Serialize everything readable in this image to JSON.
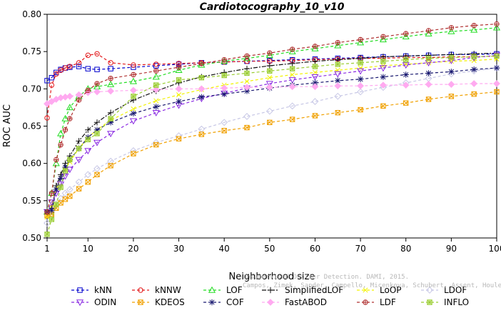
{
  "chart_data": {
    "type": "line",
    "title": "Cardiotocography_10_v10",
    "xlabel": "Neighborhood size",
    "ylabel": "ROC AUC",
    "xlim": [
      1,
      100
    ],
    "ylim": [
      0.5,
      0.8
    ],
    "xticks": [
      "1",
      "10",
      "20",
      "30",
      "40",
      "50",
      "60",
      "70",
      "80",
      "90",
      "100"
    ],
    "yticks": [
      "0.50",
      "0.55",
      "0.60",
      "0.65",
      "0.70",
      "0.75",
      "0.80"
    ],
    "grid": false,
    "legend_position": "bottom",
    "x": [
      1,
      2,
      3,
      4,
      5,
      6,
      8,
      10,
      12,
      15,
      20,
      25,
      30,
      35,
      40,
      45,
      50,
      55,
      60,
      65,
      70,
      75,
      80,
      85,
      90,
      95,
      100
    ],
    "series": [
      {
        "name": "kNN",
        "color": "#0000cd",
        "marker": "square",
        "dash": "4,3",
        "values": [
          0.711,
          0.715,
          0.722,
          0.726,
          0.728,
          0.729,
          0.73,
          0.727,
          0.726,
          0.727,
          0.729,
          0.731,
          0.733,
          0.735,
          0.736,
          0.737,
          0.738,
          0.739,
          0.74,
          0.741,
          0.742,
          0.743,
          0.744,
          0.745,
          0.746,
          0.746,
          0.747
        ]
      },
      {
        "name": "kNNW",
        "color": "#e31a1c",
        "marker": "circle",
        "dash": "4,3",
        "values": [
          0.661,
          0.705,
          0.72,
          0.725,
          0.728,
          0.73,
          0.735,
          0.745,
          0.747,
          0.735,
          0.732,
          0.733,
          0.734,
          0.735,
          0.736,
          0.737,
          0.737,
          0.738,
          0.739,
          0.74,
          0.741,
          0.741,
          0.742,
          0.742,
          0.743,
          0.743,
          0.744
        ]
      },
      {
        "name": "LOF",
        "color": "#22dd22",
        "marker": "triangle",
        "dash": "4,3",
        "values": [
          0.535,
          0.56,
          0.6,
          0.64,
          0.66,
          0.675,
          0.69,
          0.7,
          0.703,
          0.706,
          0.71,
          0.716,
          0.725,
          0.732,
          0.737,
          0.741,
          0.745,
          0.75,
          0.754,
          0.758,
          0.762,
          0.766,
          0.77,
          0.774,
          0.777,
          0.779,
          0.782
        ]
      },
      {
        "name": "SimplifiedLOF",
        "color": "#111111",
        "marker": "plus",
        "dash": "6,2,2,2",
        "values": [
          0.532,
          0.54,
          0.57,
          0.585,
          0.6,
          0.61,
          0.63,
          0.645,
          0.655,
          0.668,
          0.685,
          0.697,
          0.708,
          0.716,
          0.722,
          0.727,
          0.731,
          0.734,
          0.737,
          0.739,
          0.741,
          0.743,
          0.744,
          0.745,
          0.746,
          0.747,
          0.748
        ]
      },
      {
        "name": "LoOP",
        "color": "#f2f200",
        "marker": "x",
        "dash": "4,3",
        "values": [
          0.528,
          0.545,
          0.565,
          0.58,
          0.592,
          0.602,
          0.62,
          0.635,
          0.645,
          0.658,
          0.673,
          0.684,
          0.692,
          0.699,
          0.705,
          0.71,
          0.715,
          0.719,
          0.722,
          0.725,
          0.728,
          0.731,
          0.733,
          0.735,
          0.737,
          0.738,
          0.74
        ]
      },
      {
        "name": "LDOF",
        "color": "#c8c8e6",
        "marker": "diamond",
        "dash": "4,3",
        "values": [
          0.52,
          0.535,
          0.545,
          0.553,
          0.56,
          0.565,
          0.575,
          0.585,
          0.593,
          0.603,
          0.617,
          0.628,
          0.637,
          0.646,
          0.655,
          0.663,
          0.67,
          0.677,
          0.683,
          0.69,
          0.696,
          0.702,
          0.708,
          0.714,
          0.72,
          0.724,
          0.728
        ]
      },
      {
        "name": "ODIN",
        "color": "#8a2be2",
        "marker": "tri-down",
        "dash": "4,3",
        "values": [
          0.535,
          0.548,
          0.56,
          0.572,
          0.583,
          0.592,
          0.605,
          0.617,
          0.628,
          0.64,
          0.657,
          0.668,
          0.678,
          0.687,
          0.694,
          0.701,
          0.707,
          0.712,
          0.716,
          0.72,
          0.724,
          0.728,
          0.732,
          0.735,
          0.738,
          0.742,
          0.745
        ]
      },
      {
        "name": "KDEOS",
        "color": "#f0a000",
        "marker": "square-x",
        "dash": "4,3",
        "values": [
          0.53,
          0.532,
          0.54,
          0.547,
          0.552,
          0.556,
          0.566,
          0.575,
          0.585,
          0.597,
          0.613,
          0.625,
          0.633,
          0.639,
          0.644,
          0.648,
          0.655,
          0.659,
          0.664,
          0.668,
          0.672,
          0.677,
          0.681,
          0.686,
          0.69,
          0.693,
          0.696
        ]
      },
      {
        "name": "COF",
        "color": "#191970",
        "marker": "asterisk",
        "dash": "4,3",
        "values": [
          0.535,
          0.537,
          0.565,
          0.58,
          0.595,
          0.605,
          0.62,
          0.635,
          0.645,
          0.655,
          0.667,
          0.676,
          0.683,
          0.689,
          0.693,
          0.697,
          0.701,
          0.705,
          0.708,
          0.711,
          0.713,
          0.716,
          0.719,
          0.721,
          0.723,
          0.726,
          0.728
        ]
      },
      {
        "name": "FastABOD",
        "color": "#ffaaf0",
        "marker": "diamond-filled",
        "dash": "4,3",
        "values": [
          0.68,
          0.683,
          0.686,
          0.688,
          0.689,
          0.69,
          0.692,
          0.695,
          0.696,
          0.697,
          0.698,
          0.699,
          0.7,
          0.7,
          0.701,
          0.702,
          0.702,
          0.703,
          0.703,
          0.704,
          0.704,
          0.705,
          0.705,
          0.706,
          0.706,
          0.707,
          0.707
        ]
      },
      {
        "name": "LDF",
        "color": "#b03030",
        "marker": "circle-plus",
        "dash": "4,3",
        "values": [
          0.535,
          0.56,
          0.605,
          0.625,
          0.645,
          0.66,
          0.685,
          0.698,
          0.707,
          0.714,
          0.719,
          0.724,
          0.729,
          0.734,
          0.739,
          0.744,
          0.748,
          0.753,
          0.757,
          0.762,
          0.766,
          0.77,
          0.774,
          0.778,
          0.782,
          0.785,
          0.787
        ]
      },
      {
        "name": "INFLO",
        "color": "#9acd32",
        "marker": "square-star",
        "dash": "4,3",
        "values": [
          0.505,
          0.525,
          0.545,
          0.568,
          0.59,
          0.605,
          0.62,
          0.632,
          0.64,
          0.66,
          0.69,
          0.705,
          0.712,
          0.715,
          0.718,
          0.721,
          0.724,
          0.727,
          0.73,
          0.733,
          0.735,
          0.737,
          0.739,
          0.741,
          0.742,
          0.743,
          0.744
        ]
      }
    ]
  },
  "watermark": {
    "line1": "Unsupervised Outlier Detection. DAMI, 2015.",
    "line2": "Campos, Zimek, Sander, Campello, Micenkova, Schubert, Assent, Houle"
  }
}
